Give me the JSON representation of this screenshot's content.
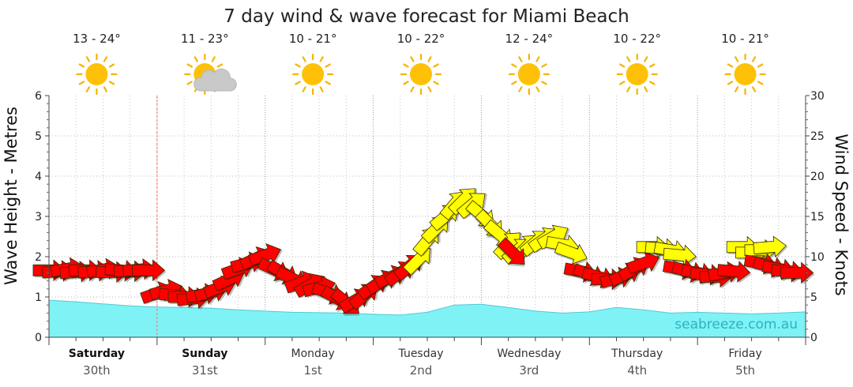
{
  "chart_data": {
    "type": "line",
    "title": "7 day wind & wave forecast for Miami Beach",
    "watermark": "seabreeze.com.au",
    "y_left": {
      "label": "Wave Height - Metres",
      "range": [
        0,
        6
      ],
      "ticks": [
        "0",
        "1",
        "2",
        "3",
        "4",
        "5",
        "6"
      ]
    },
    "y_right": {
      "label": "Wind Speed - Knots",
      "range": [
        0,
        30
      ],
      "ticks": [
        "0",
        "5",
        "10",
        "15",
        "20",
        "25",
        "30"
      ]
    },
    "x_unit": "hours from start of Saturday 30th",
    "x_range": [
      0,
      168
    ],
    "days": [
      {
        "name": "Saturday",
        "date": "30th",
        "bold": true,
        "temp": "13 - 24°",
        "icon": "sun-icon"
      },
      {
        "name": "Sunday",
        "date": "31st",
        "bold": true,
        "temp": "11 - 23°",
        "icon": "sun-cloud-icon"
      },
      {
        "name": "Monday",
        "date": "1st",
        "bold": false,
        "temp": "10 - 21°",
        "icon": "sun-icon"
      },
      {
        "name": "Tuesday",
        "date": "2nd",
        "bold": false,
        "temp": "10 - 22°",
        "icon": "sun-icon"
      },
      {
        "name": "Wednesday",
        "date": "3rd",
        "bold": false,
        "temp": "12 - 24°",
        "icon": "sun-icon"
      },
      {
        "name": "Thursday",
        "date": "4th",
        "bold": false,
        "temp": "10 - 22°",
        "icon": "sun-icon"
      },
      {
        "name": "Friday",
        "date": "5th",
        "bold": false,
        "temp": "10 - 21°",
        "icon": "sun-icon"
      }
    ],
    "current_time_hour": 24,
    "colors": {
      "wave_fill": "#7ff2f6",
      "wave_line": "#55c8d6",
      "wind_strong": "#ff0000",
      "wind_moderate": "#ffff00",
      "now_line": "#ff6f6f"
    },
    "wave_series": {
      "name": "Wave Height",
      "points": [
        [
          0,
          0.92
        ],
        [
          6,
          0.88
        ],
        [
          12,
          0.83
        ],
        [
          18,
          0.78
        ],
        [
          24,
          0.75
        ],
        [
          30,
          0.74
        ],
        [
          36,
          0.72
        ],
        [
          42,
          0.68
        ],
        [
          48,
          0.65
        ],
        [
          54,
          0.62
        ],
        [
          60,
          0.61
        ],
        [
          66,
          0.6
        ],
        [
          72,
          0.57
        ],
        [
          78,
          0.55
        ],
        [
          84,
          0.62
        ],
        [
          90,
          0.8
        ],
        [
          96,
          0.82
        ],
        [
          102,
          0.74
        ],
        [
          108,
          0.65
        ],
        [
          114,
          0.6
        ],
        [
          120,
          0.63
        ],
        [
          126,
          0.74
        ],
        [
          132,
          0.68
        ],
        [
          138,
          0.6
        ],
        [
          144,
          0.62
        ],
        [
          150,
          0.6
        ],
        [
          156,
          0.58
        ],
        [
          162,
          0.6
        ],
        [
          168,
          0.63
        ]
      ]
    },
    "wind_series": {
      "name": "Wind Speed",
      "arrows": [
        [
          0,
          8.3,
          0,
          "red"
        ],
        [
          2,
          8.2,
          -5,
          "red"
        ],
        [
          4,
          8.5,
          -10,
          "red"
        ],
        [
          6,
          8.1,
          -5,
          "red"
        ],
        [
          8,
          8.3,
          0,
          "red"
        ],
        [
          10,
          8.2,
          -5,
          "red"
        ],
        [
          12,
          8.4,
          -10,
          "red"
        ],
        [
          14,
          8.1,
          0,
          "red"
        ],
        [
          16,
          8.3,
          5,
          "red"
        ],
        [
          18,
          8.2,
          0,
          "red"
        ],
        [
          20,
          8.4,
          -5,
          "red"
        ],
        [
          22,
          8.3,
          0,
          "red"
        ],
        [
          24,
          5.5,
          -20,
          "red"
        ],
        [
          26,
          5.8,
          -15,
          "red"
        ],
        [
          28,
          5.2,
          5,
          "red"
        ],
        [
          30,
          5.0,
          0,
          "red"
        ],
        [
          32,
          4.8,
          -5,
          "red"
        ],
        [
          34,
          5.3,
          -10,
          "red"
        ],
        [
          36,
          5.6,
          -15,
          "red"
        ],
        [
          38,
          6.2,
          -20,
          "red"
        ],
        [
          40,
          7.2,
          -25,
          "red"
        ],
        [
          42,
          8.5,
          -20,
          "red"
        ],
        [
          44,
          9.2,
          -15,
          "red"
        ],
        [
          46,
          9.8,
          -25,
          "red"
        ],
        [
          48,
          10.2,
          -20,
          "red"
        ],
        [
          50,
          8.4,
          25,
          "red"
        ],
        [
          52,
          8.0,
          30,
          "red"
        ],
        [
          54,
          7.3,
          25,
          "red"
        ],
        [
          56,
          6.8,
          -20,
          "red"
        ],
        [
          58,
          6.5,
          -30,
          "red"
        ],
        [
          60,
          6.2,
          -15,
          "red"
        ],
        [
          62,
          5.5,
          20,
          "red"
        ],
        [
          64,
          4.8,
          30,
          "red"
        ],
        [
          66,
          4.3,
          40,
          "red"
        ],
        [
          68,
          4.6,
          -30,
          "red"
        ],
        [
          70,
          5.2,
          -40,
          "red"
        ],
        [
          72,
          6.3,
          -35,
          "red"
        ],
        [
          74,
          6.9,
          -30,
          "red"
        ],
        [
          76,
          7.5,
          -25,
          "red"
        ],
        [
          78,
          8.0,
          -35,
          "red"
        ],
        [
          80,
          8.8,
          -40,
          "red"
        ],
        [
          82,
          9.6,
          -45,
          "yellow"
        ],
        [
          84,
          12.0,
          -50,
          "yellow"
        ],
        [
          86,
          13.5,
          -45,
          "yellow"
        ],
        [
          88,
          15.0,
          -40,
          "yellow"
        ],
        [
          90,
          16.5,
          -50,
          "yellow"
        ],
        [
          92,
          17.0,
          -45,
          "yellow"
        ],
        [
          94,
          16.5,
          -40,
          "yellow"
        ],
        [
          96,
          15.2,
          40,
          "yellow"
        ],
        [
          98,
          14.0,
          45,
          "yellow"
        ],
        [
          100,
          12.8,
          40,
          "yellow"
        ],
        [
          102,
          11.5,
          -45,
          "yellow"
        ],
        [
          104,
          10.8,
          -40,
          "yellow"
        ],
        [
          106,
          11.2,
          -45,
          "yellow"
        ],
        [
          108,
          11.8,
          -40,
          "yellow"
        ],
        [
          110,
          12.2,
          -35,
          "yellow"
        ],
        [
          112,
          12.5,
          -30,
          "yellow"
        ],
        [
          114,
          11.5,
          10,
          "yellow"
        ],
        [
          116,
          10.5,
          20,
          "yellow"
        ],
        [
          103,
          10.5,
          45,
          "red"
        ],
        [
          118,
          8.2,
          10,
          "red"
        ],
        [
          120,
          7.8,
          20,
          "red"
        ],
        [
          122,
          7.5,
          15,
          "red"
        ],
        [
          124,
          7.2,
          0,
          "red"
        ],
        [
          126,
          7.3,
          -15,
          "red"
        ],
        [
          128,
          7.8,
          -25,
          "red"
        ],
        [
          130,
          8.5,
          -30,
          "red"
        ],
        [
          132,
          9.2,
          -20,
          "red"
        ],
        [
          134,
          11.2,
          0,
          "yellow"
        ],
        [
          136,
          11.0,
          5,
          "yellow"
        ],
        [
          138,
          10.8,
          10,
          "yellow"
        ],
        [
          140,
          10.2,
          5,
          "yellow"
        ],
        [
          140,
          8.5,
          10,
          "red"
        ],
        [
          142,
          8.2,
          15,
          "red"
        ],
        [
          144,
          8.0,
          10,
          "red"
        ],
        [
          146,
          7.8,
          5,
          "red"
        ],
        [
          148,
          7.5,
          0,
          "red"
        ],
        [
          150,
          8.0,
          -10,
          "red"
        ],
        [
          152,
          8.2,
          5,
          "red"
        ],
        [
          154,
          11.2,
          0,
          "yellow"
        ],
        [
          156,
          10.5,
          0,
          "yellow"
        ],
        [
          158,
          10.8,
          0,
          "yellow"
        ],
        [
          160,
          11.2,
          -5,
          "yellow"
        ],
        [
          158,
          9.2,
          10,
          "red"
        ],
        [
          160,
          8.8,
          15,
          "red"
        ],
        [
          162,
          8.5,
          10,
          "red"
        ],
        [
          164,
          8.2,
          5,
          "red"
        ],
        [
          166,
          8.0,
          0,
          "red"
        ]
      ]
    }
  }
}
